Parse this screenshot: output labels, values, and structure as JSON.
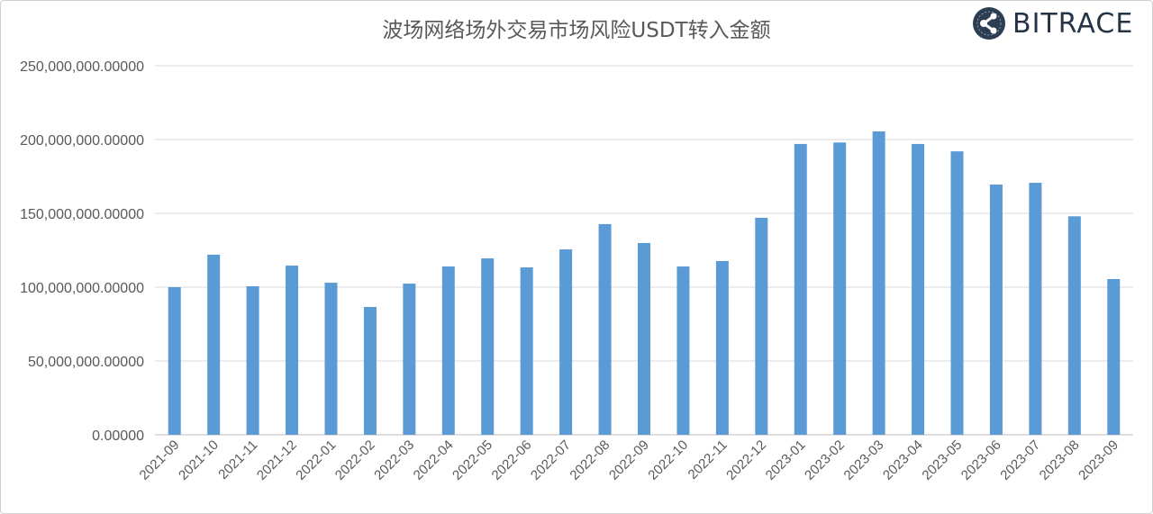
{
  "chart_data": {
    "type": "bar",
    "title": "波场网络场外交易市场风险USDT转入金额",
    "xlabel": "",
    "ylabel": "",
    "ylim": [
      0,
      250000000
    ],
    "yticks": [
      "0.00000",
      "50,000,000.00000",
      "100,000,000.00000",
      "150,000,000.00000",
      "200,000,000.00000",
      "250,000,000.00000"
    ],
    "grid": true,
    "bar_color": "#5b9bd5",
    "categories": [
      "2021-09",
      "2021-10",
      "2021-11",
      "2021-12",
      "2022-01",
      "2022-02",
      "2022-03",
      "2022-04",
      "2022-05",
      "2022-06",
      "2022-07",
      "2022-08",
      "2022-09",
      "2022-10",
      "2022-11",
      "2022-12",
      "2023-01",
      "2023-02",
      "2023-03",
      "2023-04",
      "2023-05",
      "2023-06",
      "2023-07",
      "2023-08",
      "2023-09"
    ],
    "values": [
      100000000,
      122000000,
      100600000,
      114600000,
      103000000,
      86600000,
      102400000,
      114000000,
      119500000,
      113400000,
      125600000,
      142700000,
      129900000,
      114000000,
      117700000,
      147000000,
      197000000,
      198000000,
      205500000,
      197000000,
      192000000,
      169500000,
      170700000,
      148000000,
      105500000
    ]
  },
  "logo": {
    "text": "BITRACE"
  }
}
